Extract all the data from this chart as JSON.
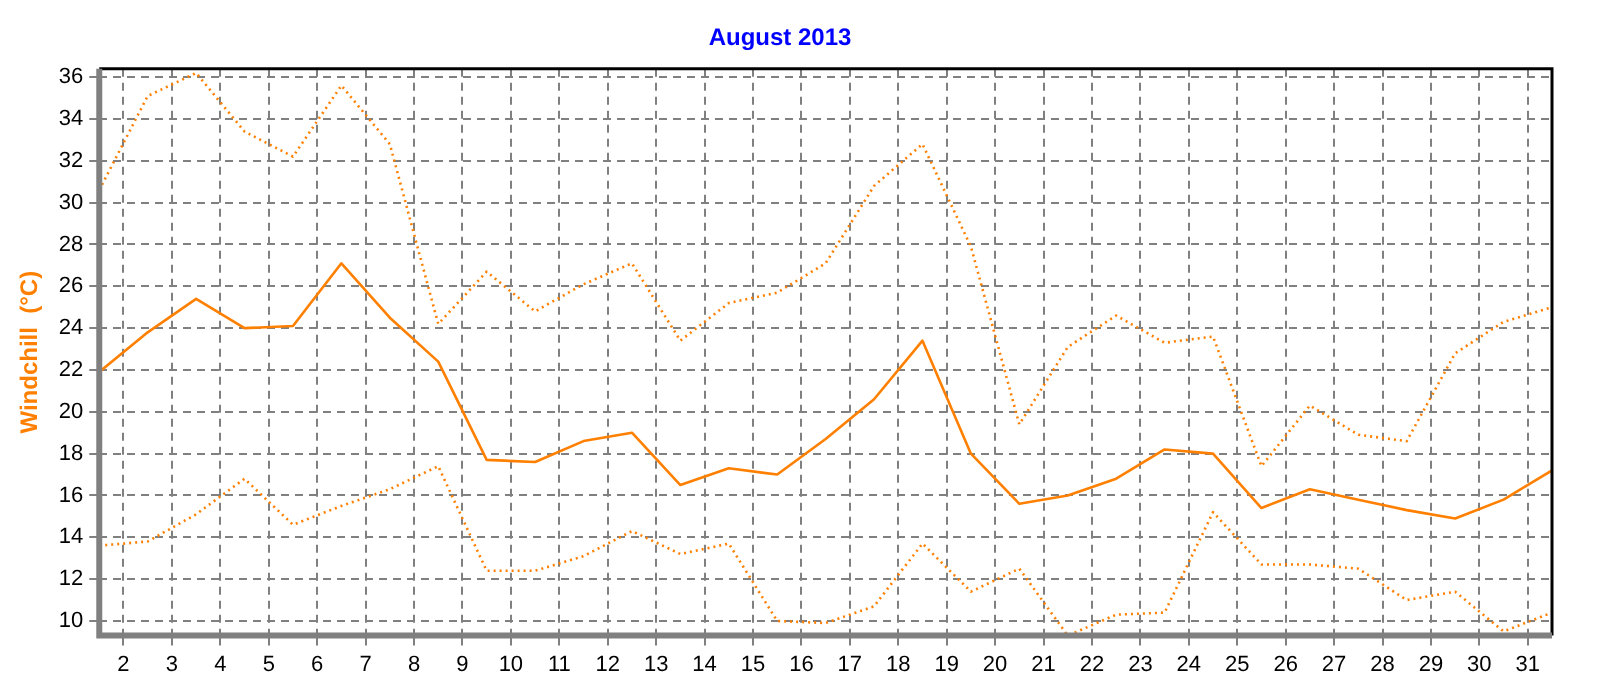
{
  "chart_data": {
    "type": "line",
    "title": "August 2013",
    "ylabel": "Windchill  (°C)",
    "x": [
      1.5,
      2.5,
      3.5,
      4.5,
      5.5,
      6.5,
      7.5,
      8.5,
      9.5,
      10.5,
      11.5,
      12.5,
      13.5,
      14.5,
      15.5,
      16.5,
      17.5,
      18.5,
      19.5,
      20.5,
      21.5,
      22.5,
      23.5,
      24.5,
      25.5,
      26.5,
      27.5,
      28.5,
      29.5,
      30.5,
      31.5
    ],
    "xlim": [
      1.5,
      31.5
    ],
    "xticks": [
      2,
      3,
      4,
      5,
      6,
      7,
      8,
      9,
      10,
      11,
      12,
      13,
      14,
      15,
      16,
      17,
      18,
      19,
      20,
      21,
      22,
      23,
      24,
      25,
      26,
      27,
      28,
      29,
      30,
      31
    ],
    "ylim": [
      9.3,
      36.4
    ],
    "yticks": [
      10,
      12,
      14,
      16,
      18,
      20,
      22,
      24,
      26,
      28,
      30,
      32,
      34,
      36
    ],
    "grid": true,
    "legend": false,
    "marker": "none",
    "series": [
      {
        "color": "#ff8000",
        "line_style": "dotted",
        "values": [
          30.6,
          35.1,
          36.2,
          33.4,
          32.2,
          35.6,
          32.8,
          24.2,
          26.7,
          24.8,
          26.1,
          27.1,
          23.4,
          25.2,
          25.7,
          27.1,
          30.8,
          32.8,
          27.9,
          19.4,
          23.1,
          24.6,
          23.3,
          23.6,
          17.4,
          20.3,
          18.9,
          18.6,
          22.8,
          24.3,
          25.0
        ]
      },
      {
        "color": "#ff8000",
        "line_style": "solid",
        "values": [
          21.9,
          23.8,
          25.4,
          24.0,
          24.1,
          27.1,
          24.5,
          22.4,
          17.7,
          17.6,
          18.6,
          19.0,
          16.5,
          17.3,
          17.0,
          18.7,
          20.6,
          23.4,
          18.0,
          15.6,
          16.0,
          16.8,
          18.2,
          18.0,
          15.4,
          16.3,
          15.8,
          15.3,
          14.9,
          15.8,
          17.2
        ]
      },
      {
        "color": "#ff8000",
        "line_style": "dotted",
        "values": [
          13.6,
          13.8,
          15.1,
          16.8,
          14.6,
          15.5,
          16.3,
          17.4,
          12.4,
          12.4,
          13.1,
          14.3,
          13.2,
          13.7,
          10.0,
          9.9,
          10.7,
          13.7,
          11.4,
          12.5,
          9.3,
          10.3,
          10.4,
          15.2,
          12.7,
          12.7,
          12.5,
          11.0,
          11.4,
          9.5,
          10.4
        ]
      }
    ]
  }
}
